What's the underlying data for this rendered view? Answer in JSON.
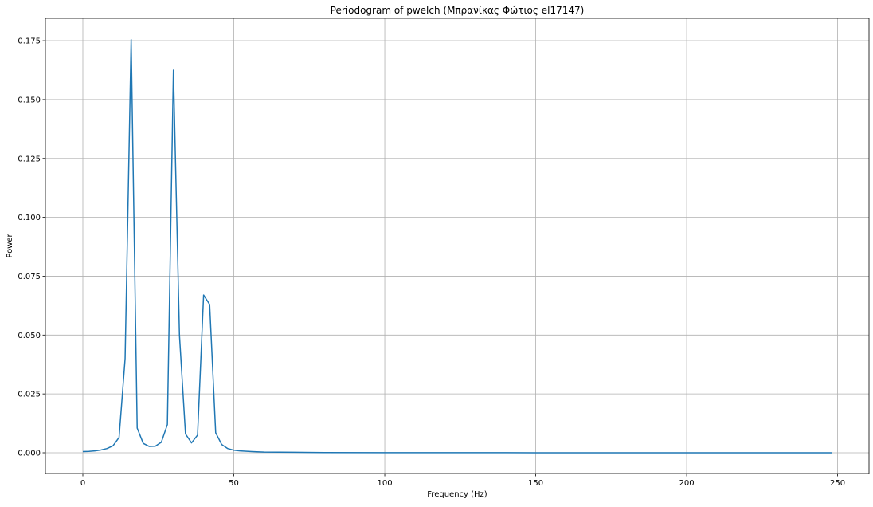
{
  "chart_data": {
    "type": "line",
    "title": "Periodogram of pwelch (Μπρανίκας Φώτιος el17147)",
    "xlabel": "Frequency (Hz)",
    "ylabel": "Power",
    "xlim": [
      -12.4,
      260.4
    ],
    "ylim": [
      -0.0088,
      0.1845
    ],
    "xticks": [
      0,
      50,
      100,
      150,
      200,
      250
    ],
    "xtick_labels": [
      "0",
      "50",
      "100",
      "150",
      "200",
      "250"
    ],
    "yticks": [
      0.0,
      0.025,
      0.05,
      0.075,
      0.1,
      0.125,
      0.15,
      0.175
    ],
    "ytick_labels": [
      "0.000",
      "0.025",
      "0.050",
      "0.075",
      "0.100",
      "0.125",
      "0.150",
      "0.175"
    ],
    "grid": true,
    "series": [
      {
        "color": "#1f77b4",
        "x": [
          0,
          2,
          4,
          6,
          8,
          10,
          12,
          14,
          16,
          18,
          20,
          22,
          24,
          26,
          28,
          30,
          32,
          34,
          36,
          38,
          40,
          42,
          44,
          46,
          48,
          50,
          52,
          56,
          60,
          70,
          80,
          100,
          150,
          200,
          248
        ],
        "y": [
          0.0005,
          0.0006,
          0.0008,
          0.0012,
          0.0018,
          0.003,
          0.0065,
          0.04,
          0.1755,
          0.0105,
          0.004,
          0.0027,
          0.0028,
          0.0045,
          0.012,
          0.1625,
          0.05,
          0.008,
          0.0042,
          0.0075,
          0.067,
          0.063,
          0.0085,
          0.0035,
          0.0018,
          0.0011,
          0.0008,
          0.0005,
          0.0003,
          0.0002,
          0.0001,
          5e-05,
          2e-05,
          1e-05,
          0.0
        ]
      }
    ]
  }
}
